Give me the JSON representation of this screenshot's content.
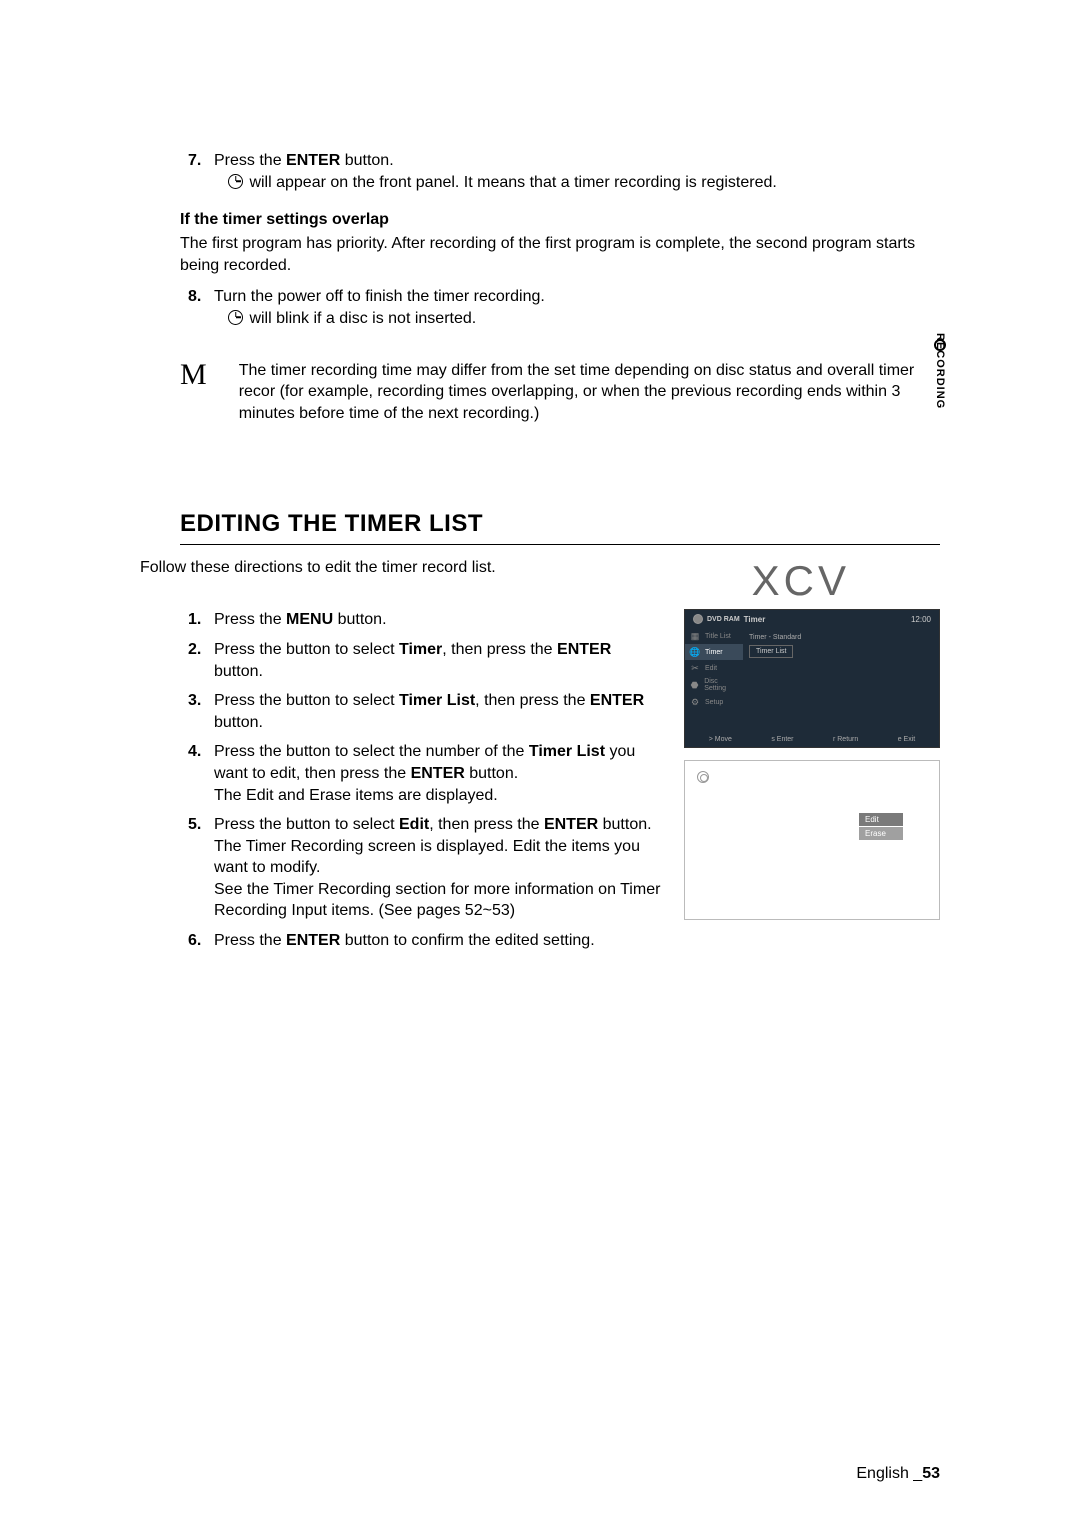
{
  "side_tab_label": "RECORDING",
  "steps_top": [
    {
      "num": "7.",
      "parts": [
        "Press the ",
        {
          "b": "ENTER"
        },
        " button."
      ],
      "sub_prefix_icon": true,
      "sub": " will appear on the front panel. It means that a timer recording is registered."
    }
  ],
  "overlap_heading": "If the timer settings overlap",
  "overlap_text": "The first program has priority. After recording of the first program is complete, the second program starts being recorded.",
  "steps_mid": [
    {
      "num": "8.",
      "parts": [
        "Turn the power off to finish the timer recording."
      ],
      "sub_prefix_icon": true,
      "sub": " will blink if a disc is not inserted."
    }
  ],
  "note_symbol": "M",
  "note_text": "The timer recording time may differ from the set time depending on disc status and overall timer recor (for example, recording times overlapping, or when the previous recording ends within 3 minutes before time of the next recording.)",
  "section_title": "EDITING THE TIMER LIST",
  "intro_text": "Follow these directions to edit the timer record list.",
  "xcv_text": "XCV",
  "edit_steps": [
    {
      "num": "1.",
      "parts": [
        "Press the ",
        {
          "b": "MENU"
        },
        " button."
      ]
    },
    {
      "num": "2.",
      "parts": [
        "Press the         button to select ",
        {
          "b": "Timer"
        },
        ", then press the ",
        {
          "b": "ENTER"
        },
        " button."
      ]
    },
    {
      "num": "3.",
      "parts": [
        "Press the         button to select ",
        {
          "b": "Timer List"
        },
        ", then press the ",
        {
          "b": "ENTER"
        },
        " button."
      ]
    },
    {
      "num": "4.",
      "parts": [
        "Press the         button to select the number of the ",
        {
          "b": "Timer List"
        },
        " you want to edit, then press the ",
        {
          "b": "ENTER"
        },
        " button."
      ],
      "tail": "The Edit and Erase items are displayed."
    },
    {
      "num": "5.",
      "parts": [
        "Press the         button to select ",
        {
          "b": "Edit"
        },
        ", then press the ",
        {
          "b": "ENTER"
        },
        " button."
      ],
      "tail": "The Timer Recording screen is displayed. Edit the items you want to modify.",
      "tail2": "See the Timer Recording section for more information on Timer Recording Input items. (See pages 52~53)"
    },
    {
      "num": "6.",
      "parts": [
        "Press the ",
        {
          "b": "ENTER"
        },
        " button to confirm the edited setting."
      ]
    }
  ],
  "screen1": {
    "dvd_label": "DVD RAM",
    "header_title": "Timer",
    "header_time": "12:00",
    "side_items": [
      {
        "icon": "▦",
        "label": "Title List",
        "active": false
      },
      {
        "icon": "🌐",
        "label": "Timer",
        "active": true
      },
      {
        "icon": "✂",
        "label": "Edit",
        "active": false
      },
      {
        "icon": "⬣",
        "label": "Disc Setting",
        "active": false
      },
      {
        "icon": "⚙",
        "label": "Setup",
        "active": false
      }
    ],
    "content_header": "Timer - Standard",
    "content_box": "Timer List",
    "bottom": [
      "> Move",
      "s Enter",
      "r Return",
      "e Exit"
    ]
  },
  "screen2": {
    "menu_items": [
      "Edit",
      "Erase"
    ],
    "selected_index": 0
  },
  "footer_lang": "English ",
  "footer_underscore": "_",
  "footer_page": "53"
}
